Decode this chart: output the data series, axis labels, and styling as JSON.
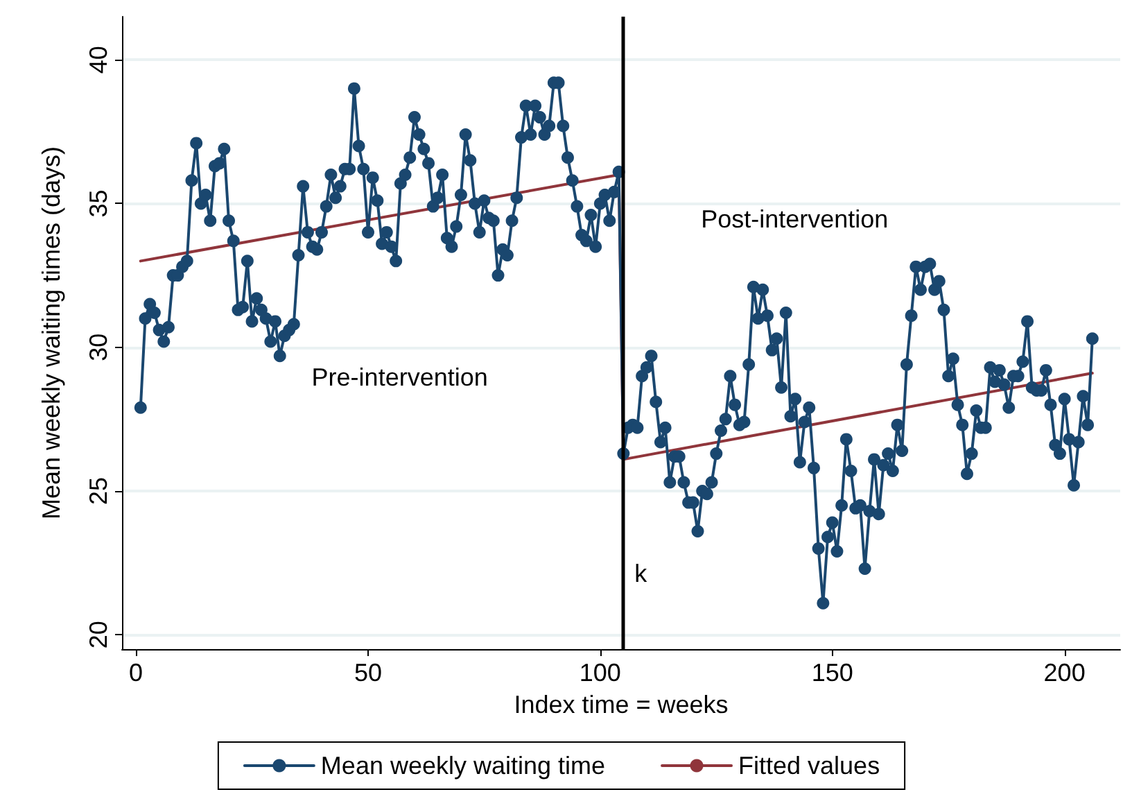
{
  "chart_data": {
    "type": "line",
    "xlabel": "Index time = weeks",
    "ylabel": "Mean weekly waiting times (days)",
    "xlim": [
      -3,
      212
    ],
    "xticks": [
      0,
      50,
      100,
      150,
      200
    ],
    "ylim": [
      19.5,
      41.5
    ],
    "yticks": [
      20,
      25,
      30,
      35,
      40
    ],
    "grid": "y",
    "legend": "bottom",
    "marker": "circle",
    "line_style": "solid",
    "annotations": [
      "Pre-intervention",
      "Post-intervention"
    ],
    "ref_lines": [
      {
        "axis": "x",
        "value": 105,
        "label": "k",
        "color": "#000000"
      }
    ],
    "series": [
      {
        "name": "Mean weekly waiting time",
        "color": "#1a476f",
        "x": [
          1,
          2,
          3,
          4,
          5,
          6,
          7,
          8,
          9,
          10,
          11,
          12,
          13,
          14,
          15,
          16,
          17,
          18,
          19,
          20,
          21,
          22,
          23,
          24,
          25,
          26,
          27,
          28,
          29,
          30,
          31,
          32,
          33,
          34,
          35,
          36,
          37,
          38,
          39,
          40,
          41,
          42,
          43,
          44,
          45,
          46,
          47,
          48,
          49,
          50,
          51,
          52,
          53,
          54,
          55,
          56,
          57,
          58,
          59,
          60,
          61,
          62,
          63,
          64,
          65,
          66,
          67,
          68,
          69,
          70,
          71,
          72,
          73,
          74,
          75,
          76,
          77,
          78,
          79,
          80,
          81,
          82,
          83,
          84,
          85,
          86,
          87,
          88,
          89,
          90,
          91,
          92,
          93,
          94,
          95,
          96,
          97,
          98,
          99,
          100,
          101,
          102,
          103,
          104,
          105,
          106,
          107,
          108,
          109,
          110,
          111,
          112,
          113,
          114,
          115,
          116,
          117,
          118,
          119,
          120,
          121,
          122,
          123,
          124,
          125,
          126,
          127,
          128,
          129,
          130,
          131,
          132,
          133,
          134,
          135,
          136,
          137,
          138,
          139,
          140,
          141,
          142,
          143,
          144,
          145,
          146,
          147,
          148,
          149,
          150,
          151,
          152,
          153,
          154,
          155,
          156,
          157,
          158,
          159,
          160,
          161,
          162,
          163,
          164,
          165,
          166,
          167,
          168,
          169,
          170,
          171,
          172,
          173,
          174,
          175,
          176,
          177,
          178,
          179,
          180,
          181,
          182,
          183,
          184,
          185,
          186,
          187,
          188,
          189,
          190,
          191,
          192,
          193,
          194,
          195,
          196,
          197,
          198,
          199,
          200,
          201,
          202,
          203,
          204,
          205,
          206
        ],
        "values": [
          27.9,
          31.0,
          31.5,
          31.2,
          30.6,
          30.2,
          30.7,
          32.5,
          32.5,
          32.8,
          33.0,
          35.8,
          37.1,
          35.0,
          35.3,
          34.4,
          36.3,
          36.4,
          36.9,
          34.4,
          33.7,
          31.3,
          31.4,
          33.0,
          30.9,
          31.7,
          31.3,
          31.0,
          30.2,
          30.9,
          29.7,
          30.4,
          30.6,
          30.8,
          33.2,
          35.6,
          34.0,
          33.5,
          33.4,
          34.0,
          34.9,
          36.0,
          35.2,
          35.6,
          36.2,
          36.2,
          39.0,
          37.0,
          36.2,
          34.0,
          35.9,
          35.1,
          33.6,
          34.0,
          33.5,
          33.0,
          35.7,
          36.0,
          36.6,
          38.0,
          37.4,
          36.9,
          36.4,
          34.9,
          35.2,
          36.0,
          33.8,
          33.5,
          34.2,
          35.3,
          37.4,
          36.5,
          35.0,
          34.0,
          35.1,
          34.5,
          34.4,
          32.5,
          33.4,
          33.2,
          34.4,
          35.2,
          37.3,
          38.4,
          37.4,
          38.4,
          38.0,
          37.4,
          37.7,
          39.2,
          39.2,
          37.7,
          36.6,
          35.8,
          34.9,
          33.9,
          33.7,
          34.6,
          33.5,
          35.0,
          35.3,
          34.4,
          35.4,
          36.1,
          26.3,
          27.2,
          27.3,
          27.2,
          29.0,
          29.3,
          29.7,
          28.1,
          26.7,
          27.2,
          25.3,
          26.2,
          26.2,
          25.3,
          24.6,
          24.6,
          23.6,
          25.0,
          24.9,
          25.3,
          26.3,
          27.1,
          27.5,
          29.0,
          28.0,
          27.3,
          27.4,
          29.4,
          32.1,
          31.0,
          32.0,
          31.1,
          29.9,
          30.3,
          28.6,
          31.2,
          27.6,
          28.2,
          26.0,
          27.4,
          27.9,
          25.8,
          23.0,
          21.1,
          23.4,
          23.9,
          22.9,
          24.5,
          26.8,
          25.7,
          24.4,
          24.5,
          22.3,
          24.3,
          26.1,
          24.2,
          25.9,
          26.3,
          25.7,
          27.3,
          26.4,
          29.4,
          31.1,
          32.8,
          32.0,
          32.8,
          32.9,
          32.0,
          32.3,
          31.3,
          29.0,
          29.6,
          28.0,
          27.3,
          25.6,
          26.3,
          27.8,
          27.2,
          27.2,
          29.3,
          28.8,
          29.2,
          28.7,
          27.9,
          29.0,
          29.0,
          29.5,
          30.9,
          28.6,
          28.5,
          28.5,
          29.2,
          28.0,
          26.6,
          26.3,
          28.2,
          26.8,
          25.2,
          26.7,
          28.3,
          27.3,
          30.3
        ]
      },
      {
        "name": "Fitted values",
        "color": "#90353b",
        "marker": "none",
        "x": [
          1,
          104,
          105,
          206
        ],
        "values": [
          33.0,
          36.0,
          26.1,
          29.1
        ]
      }
    ]
  }
}
